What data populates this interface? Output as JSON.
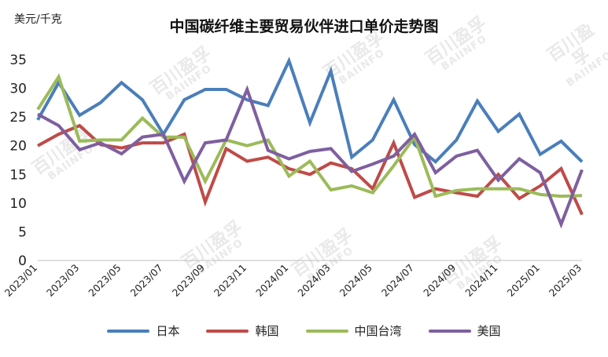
{
  "chart_data": {
    "type": "line",
    "title": "中国碳纤维主要贸易伙伴进口单价走势图",
    "unit": "美元/千克",
    "ylim": [
      0,
      35
    ],
    "yticks": [
      0,
      5,
      10,
      15,
      20,
      25,
      30,
      35
    ],
    "grid": false,
    "legend_position": "bottom",
    "x": [
      "2023/01",
      "2023/02",
      "2023/03",
      "2023/04",
      "2023/05",
      "2023/06",
      "2023/07",
      "2023/08",
      "2023/09",
      "2023/10",
      "2023/11",
      "2023/12",
      "2024/01",
      "2024/02",
      "2024/03",
      "2024/04",
      "2024/05",
      "2024/06",
      "2024/07",
      "2024/08",
      "2024/09",
      "2024/10",
      "2024/11",
      "2024/12",
      "2025/01",
      "2025/02",
      "2025/03"
    ],
    "x_tick_labels": [
      "2023/01",
      "2023/03",
      "2023/05",
      "2023/07",
      "2023/09",
      "2023/11",
      "2024/01",
      "2024/03",
      "2024/05",
      "2024/07",
      "2024/09",
      "2024/11",
      "2025/01",
      "2025/03"
    ],
    "series": [
      {
        "name": "日本",
        "color": "#4a7ebb",
        "values": [
          24.5,
          31,
          25.3,
          27.5,
          31,
          28,
          22,
          28,
          29.8,
          29.8,
          28,
          27,
          34.8,
          24,
          33,
          18,
          21,
          28,
          20.2,
          17.2,
          21,
          27.8,
          22.5,
          25.5,
          18.5,
          20.8,
          17.2
        ]
      },
      {
        "name": "韩国",
        "color": "#be4b48",
        "values": [
          20,
          22,
          23.5,
          20.2,
          19.6,
          20.5,
          20.5,
          22,
          10.2,
          19.5,
          17.3,
          18,
          16,
          15,
          17,
          16,
          12.5,
          20.5,
          11,
          12.5,
          11.8,
          11.2,
          15,
          10.8,
          13,
          16,
          8
        ]
      },
      {
        "name": "中国台湾",
        "color": "#9bbb59",
        "values": [
          26.3,
          32,
          20.8,
          21,
          21,
          24.8,
          21.5,
          21.5,
          13.8,
          21,
          20,
          21,
          14.7,
          17.3,
          12.3,
          13,
          11.8,
          16.5,
          21.5,
          11.2,
          12.2,
          12.5,
          12.5,
          12.5,
          11.5,
          11.2,
          11.3
        ]
      },
      {
        "name": "美国",
        "color": "#7e5fa0",
        "values": [
          25.5,
          23.5,
          19.3,
          20.5,
          18.6,
          21.5,
          22,
          13.8,
          20.5,
          21,
          29.8,
          19.2,
          17.7,
          19,
          19.5,
          15.5,
          16.8,
          18.2,
          22,
          15.3,
          18.2,
          19.2,
          14,
          17.7,
          15.3,
          6.3,
          15.8
        ]
      }
    ]
  },
  "watermark": {
    "text": "百川盈孚",
    "subtext": "BAIINFO"
  }
}
